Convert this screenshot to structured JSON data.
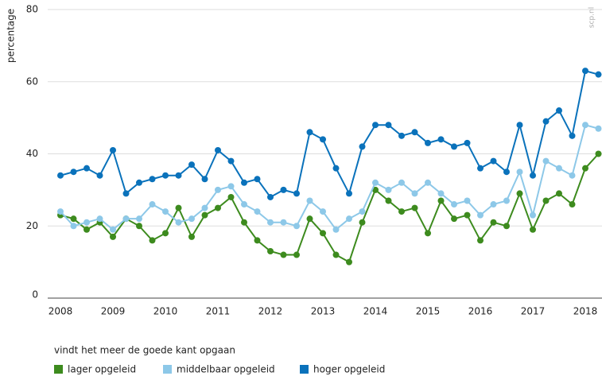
{
  "chart_data": {
    "type": "line",
    "y_label": "percentage",
    "source": "scp.nl",
    "legend_title": "vindt het meer de goede kant opgaan",
    "categories": [
      "2008",
      null,
      null,
      null,
      "2009",
      null,
      null,
      null,
      "2010",
      null,
      null,
      null,
      "2011",
      null,
      null,
      null,
      "2012",
      null,
      null,
      null,
      "2013",
      null,
      null,
      null,
      "2014",
      null,
      null,
      null,
      "2015",
      null,
      null,
      null,
      "2016",
      null,
      null,
      null,
      "2017",
      null,
      null,
      null,
      "2018",
      null
    ],
    "ylim": [
      0,
      80
    ],
    "yticks": [
      0,
      20,
      40,
      60,
      80
    ],
    "grid": true,
    "series": [
      {
        "name": "lager opgeleid",
        "color": "#3d8b1e",
        "values": [
          23,
          22,
          19,
          21,
          17,
          22,
          20,
          16,
          18,
          25,
          17,
          23,
          25,
          28,
          21,
          16,
          13,
          12,
          12,
          22,
          18,
          12,
          10,
          21,
          30,
          27,
          24,
          25,
          18,
          27,
          22,
          23,
          16,
          21,
          20,
          29,
          19,
          27,
          29,
          26,
          36,
          40
        ]
      },
      {
        "name": "middelbaar opgeleid",
        "color": "#8dc8e8",
        "values": [
          24,
          20,
          21,
          22,
          19,
          22,
          22,
          26,
          24,
          21,
          22,
          25,
          30,
          31,
          26,
          24,
          21,
          21,
          20,
          27,
          24,
          19,
          22,
          24,
          32,
          30,
          32,
          29,
          32,
          29,
          26,
          27,
          23,
          26,
          27,
          35,
          23,
          38,
          36,
          34,
          48,
          47
        ]
      },
      {
        "name": "hoger opgeleid",
        "color": "#0a72bb",
        "values": [
          34,
          35,
          36,
          34,
          41,
          29,
          32,
          33,
          34,
          34,
          37,
          33,
          41,
          38,
          32,
          33,
          28,
          30,
          29,
          46,
          44,
          36,
          29,
          42,
          48,
          48,
          45,
          46,
          43,
          44,
          42,
          43,
          36,
          38,
          35,
          48,
          34,
          49,
          52,
          45,
          63,
          62
        ]
      }
    ]
  }
}
